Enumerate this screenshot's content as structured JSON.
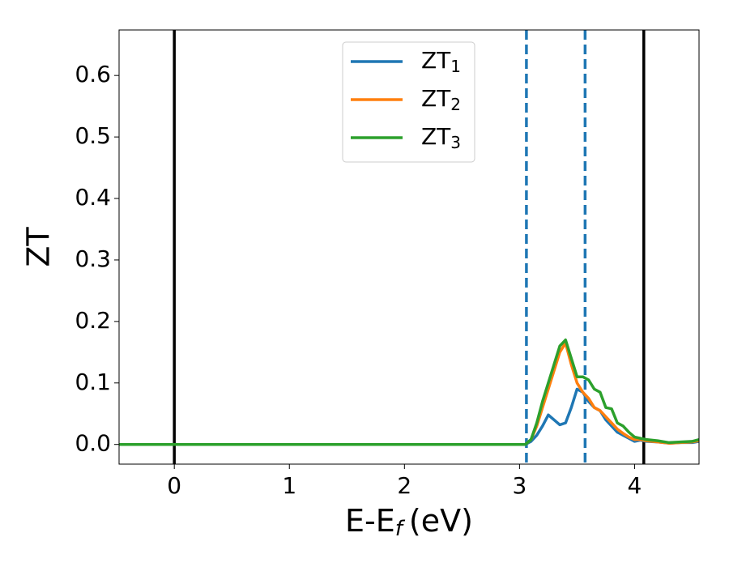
{
  "chart_data": {
    "type": "line",
    "ylabel": "ZT",
    "xlabel": {
      "main": "E-E",
      "sub": "f",
      "unit": "(eV)"
    },
    "x": [
      -0.48,
      3.0,
      3.05,
      3.1,
      3.15,
      3.2,
      3.25,
      3.3,
      3.35,
      3.4,
      3.45,
      3.5,
      3.55,
      3.6,
      3.65,
      3.7,
      3.75,
      3.8,
      3.85,
      3.9,
      3.95,
      4.0,
      4.05,
      4.1,
      4.2,
      4.3,
      4.4,
      4.5,
      4.56
    ],
    "series": [
      {
        "name": {
          "main": "ZT",
          "sub": "1"
        },
        "color": "#1f77b4",
        "values": [
          0,
          0,
          0,
          0.005,
          0.015,
          0.03,
          0.048,
          0.04,
          0.032,
          0.035,
          0.06,
          0.09,
          0.085,
          0.07,
          0.06,
          0.055,
          0.04,
          0.03,
          0.02,
          0.015,
          0.01,
          0.005,
          0.007,
          0.005,
          0.004,
          0.002,
          0.003,
          0.003,
          0.005
        ]
      },
      {
        "name": {
          "main": "ZT",
          "sub": "2"
        },
        "color": "#ff7f0e",
        "values": [
          0,
          0,
          0,
          0.008,
          0.03,
          0.06,
          0.09,
          0.12,
          0.15,
          0.165,
          0.13,
          0.1,
          0.085,
          0.075,
          0.06,
          0.055,
          0.045,
          0.035,
          0.025,
          0.018,
          0.012,
          0.008,
          0.008,
          0.006,
          0.004,
          0.002,
          0.003,
          0.004,
          0.006
        ]
      },
      {
        "name": {
          "main": "ZT",
          "sub": "3"
        },
        "color": "#2ca02c",
        "values": [
          0,
          0,
          0,
          0.008,
          0.035,
          0.07,
          0.1,
          0.13,
          0.16,
          0.17,
          0.14,
          0.11,
          0.11,
          0.105,
          0.09,
          0.085,
          0.06,
          0.058,
          0.035,
          0.03,
          0.02,
          0.012,
          0.01,
          0.008,
          0.006,
          0.003,
          0.004,
          0.005,
          0.008
        ]
      }
    ],
    "vlines": [
      {
        "x": 0,
        "color": "#000000",
        "style": "solid"
      },
      {
        "x": 4.08,
        "color": "#000000",
        "style": "solid"
      },
      {
        "x": 3.06,
        "color": "#1f77b4",
        "style": "dashed"
      },
      {
        "x": 3.57,
        "color": "#1f77b4",
        "style": "dashed"
      }
    ],
    "xlim": [
      -0.48,
      4.56
    ],
    "ylim": [
      -0.032,
      0.674
    ],
    "xticks": [
      0,
      1,
      2,
      3,
      4
    ],
    "yticks": [
      {
        "value": 0,
        "label": "0.0"
      },
      0.1,
      0.2,
      0.3,
      0.4,
      0.5,
      0.6
    ],
    "legend": "upper center",
    "grid": false
  }
}
